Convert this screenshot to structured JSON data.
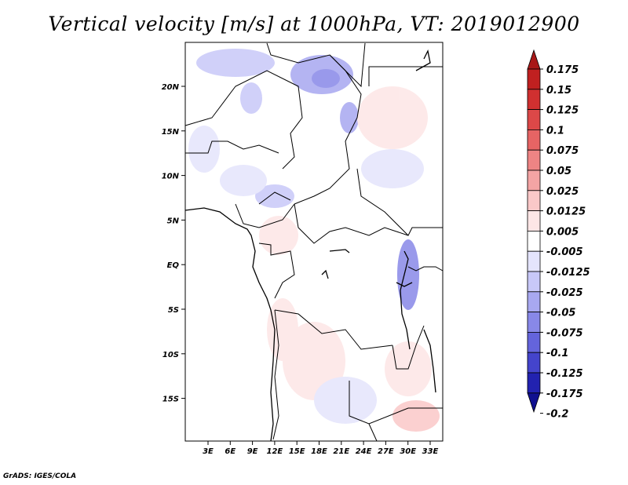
{
  "title": "Vertical velocity [m/s] at 1000hPa, VT: 2019012900",
  "credit": "GrADS: IGES/COLA",
  "map": {
    "lon_ticks": [
      "3E",
      "6E",
      "9E",
      "12E",
      "15E",
      "18E",
      "21E",
      "24E",
      "27E",
      "30E",
      "33E"
    ],
    "lat_ticks": [
      "20N",
      "15N",
      "10N",
      "5N",
      "EQ",
      "5S",
      "10S",
      "15S"
    ]
  },
  "colorbar": {
    "labels": [
      "0.175",
      "0.15",
      "0.125",
      "0.1",
      "0.075",
      "0.05",
      "0.025",
      "0.0125",
      "0.005",
      "-0.005",
      "-0.0125",
      "-0.025",
      "-0.05",
      "-0.075",
      "-0.1",
      "-0.125",
      "-0.175",
      "-0.2"
    ],
    "colors": [
      "#a81818",
      "#c02020",
      "#d03030",
      "#dc4848",
      "#e66464",
      "#ee8484",
      "#f4a4a4",
      "#fac8c8",
      "#fde6e6",
      "#ffffff",
      "#e4e4fc",
      "#c8c8f8",
      "#a8a8f0",
      "#8888e8",
      "#6464dc",
      "#4444cc",
      "#2222b0",
      "#101090"
    ]
  }
}
